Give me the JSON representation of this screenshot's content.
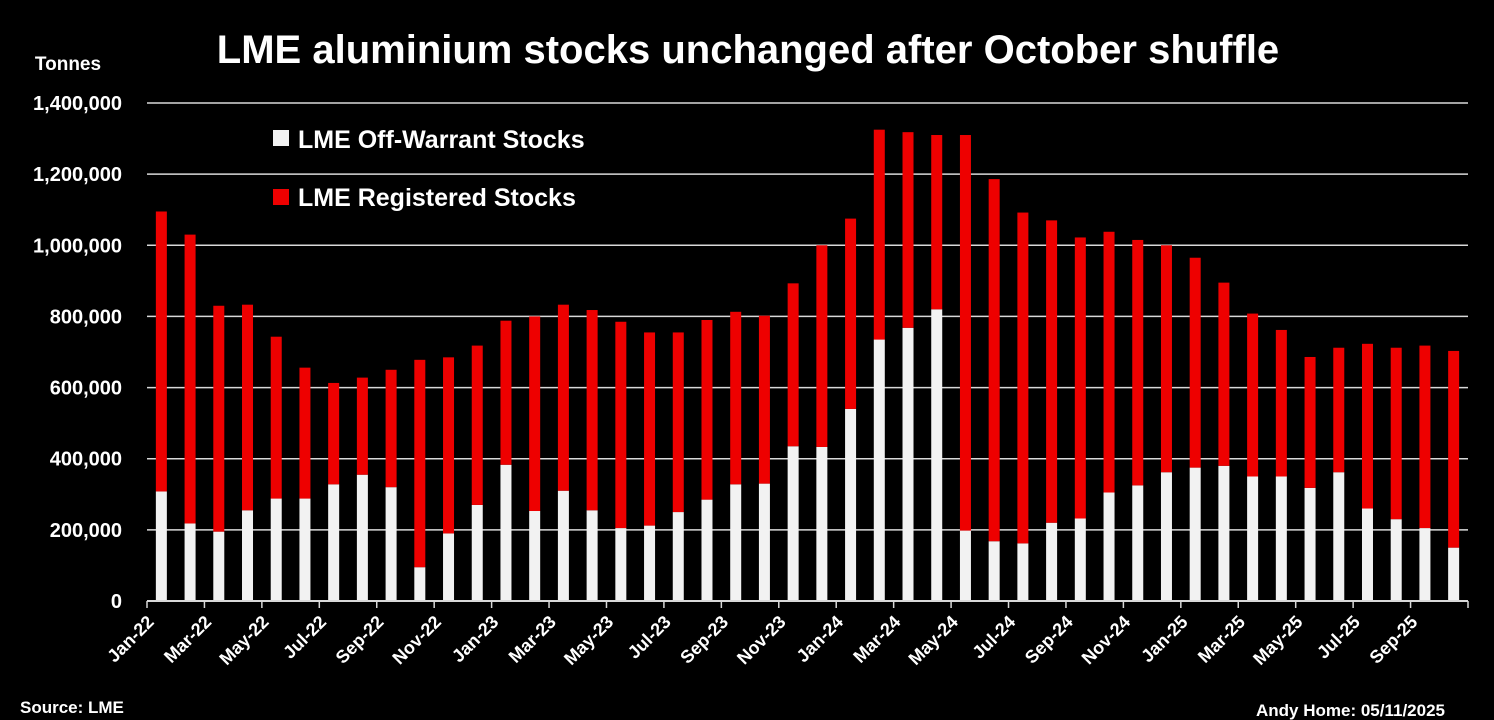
{
  "chart_data": {
    "type": "bar",
    "stacked": true,
    "title": "LME aluminium stocks unchanged after October shuffle",
    "ylabel": "Tonnes",
    "xlabel": "",
    "ylim": [
      0,
      1400000
    ],
    "yticks": [
      0,
      200000,
      400000,
      600000,
      800000,
      1000000,
      1200000,
      1400000
    ],
    "ytick_labels": [
      "0",
      "200,000",
      "400,000",
      "600,000",
      "800,000",
      "1,000,000",
      "1,200,000",
      "1,400,000"
    ],
    "grid": true,
    "legend_position": "top-left",
    "source": "Source: LME",
    "credit": "Andy Home: 05/11/2025",
    "categories": [
      "Jan-22",
      "Feb-22",
      "Mar-22",
      "Apr-22",
      "May-22",
      "Jun-22",
      "Jul-22",
      "Aug-22",
      "Sep-22",
      "Oct-22",
      "Nov-22",
      "Dec-22",
      "Jan-23",
      "Feb-23",
      "Mar-23",
      "Apr-23",
      "May-23",
      "Jun-23",
      "Jul-23",
      "Aug-23",
      "Sep-23",
      "Oct-23",
      "Nov-23",
      "Dec-23",
      "Jan-24",
      "Feb-24",
      "Mar-24",
      "Apr-24",
      "May-24",
      "Jun-24",
      "Jul-24",
      "Aug-24",
      "Sep-24",
      "Oct-24",
      "Nov-24",
      "Dec-24",
      "Jan-25",
      "Feb-25",
      "Mar-25",
      "Apr-25",
      "May-25",
      "Jun-25",
      "Jul-25",
      "Aug-25",
      "Sep-25",
      "Oct-25"
    ],
    "series": [
      {
        "name": "LME Off-Warrant Stocks",
        "color": "#f2f2f2",
        "values": [
          308000,
          218000,
          195000,
          255000,
          288000,
          288000,
          328000,
          355000,
          320000,
          95000,
          190000,
          270000,
          383000,
          253000,
          310000,
          255000,
          205000,
          212000,
          250000,
          285000,
          328000,
          330000,
          435000,
          433000,
          540000,
          735000,
          768000,
          820000,
          198000,
          168000,
          162000,
          220000,
          232000,
          305000,
          325000,
          362000,
          375000,
          380000,
          350000,
          350000,
          318000,
          362000,
          260000,
          230000,
          205000,
          150000
        ]
      },
      {
        "name": "LME Registered Stocks",
        "color": "#ee0000",
        "values": [
          787000,
          812000,
          635000,
          578000,
          455000,
          368000,
          285000,
          273000,
          330000,
          583000,
          495000,
          448000,
          405000,
          547000,
          523000,
          563000,
          580000,
          543000,
          505000,
          505000,
          485000,
          472000,
          458000,
          567000,
          535000,
          590000,
          550000,
          490000,
          1112000,
          1018000,
          930000,
          850000,
          790000,
          733000,
          690000,
          638000,
          590000,
          515000,
          458000,
          412000,
          368000,
          350000,
          463000,
          482000,
          513000,
          553000
        ]
      }
    ],
    "tick_labels": [
      "Jan-22",
      "Mar-22",
      "May-22",
      "Jul-22",
      "Sep-22",
      "Nov-22",
      "Jan-23",
      "Mar-23",
      "May-23",
      "Jul-23",
      "Sep-23",
      "Nov-23",
      "Jan-24",
      "Mar-24",
      "May-24",
      "Jul-24",
      "Sep-24",
      "Nov-24",
      "Jan-25",
      "Mar-25",
      "May-25",
      "Jul-25",
      "Sep-25"
    ]
  }
}
